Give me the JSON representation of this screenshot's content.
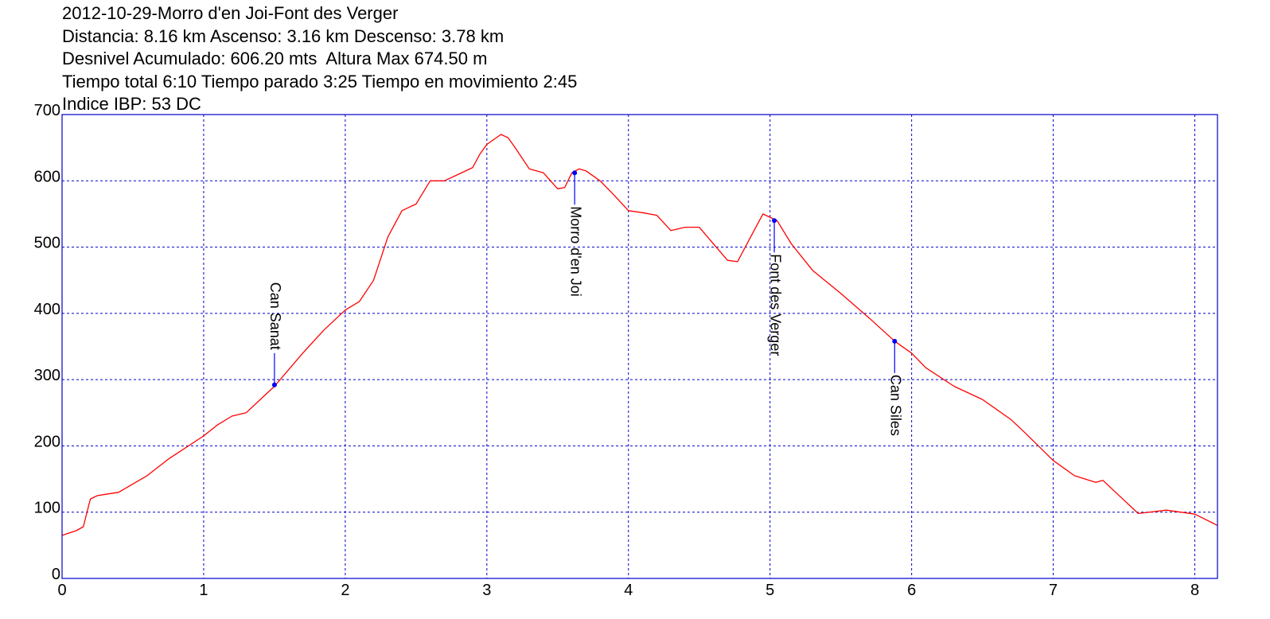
{
  "header": {
    "lines": [
      "2012-10-29-Morro d'en Joi-Font des Verger",
      "Distancia: 8.16 km Ascenso: 3.16 km Descenso: 3.78 km",
      "Desnivel Acumulado: 606.20 mts  Altura Max 674.50 m",
      "Tiempo total 6:10 Tiempo parado 3:25 Tiempo en movimiento 2:45",
      "Indice IBP: 53 DC"
    ]
  },
  "chart_data": {
    "type": "line",
    "title": "2012-10-29-Morro d'en Joi-Font des Verger",
    "xlabel": "",
    "ylabel": "",
    "xlim": [
      0,
      8.16
    ],
    "ylim": [
      0,
      700
    ],
    "x_ticks": [
      0,
      1,
      2,
      3,
      4,
      5,
      6,
      7,
      8
    ],
    "y_ticks": [
      0,
      100,
      200,
      300,
      400,
      500,
      600,
      700
    ],
    "grid": true,
    "colors": {
      "line": "#ff0000",
      "grid": "#0000cc",
      "frame": "#0000cc",
      "waypoint": "#0000ff"
    },
    "series": [
      {
        "x": [
          0,
          0.1,
          0.15,
          0.2,
          0.25,
          0.4,
          0.6,
          0.75,
          1.0,
          1.1,
          1.2,
          1.3,
          1.5,
          1.7,
          1.85,
          2.0,
          2.1,
          2.2,
          2.3,
          2.4,
          2.5,
          2.6,
          2.7,
          2.8,
          2.9,
          2.95,
          3.0,
          3.1,
          3.15,
          3.2,
          3.3,
          3.4,
          3.5,
          3.55,
          3.6,
          3.65,
          3.7,
          3.8,
          3.9,
          4.0,
          4.1,
          4.2,
          4.3,
          4.4,
          4.5,
          4.6,
          4.7,
          4.77,
          4.85,
          4.95,
          5.0,
          5.05,
          5.15,
          5.3,
          5.5,
          5.7,
          5.88,
          6.0,
          6.1,
          6.3,
          6.5,
          6.7,
          6.8,
          7.0,
          7.15,
          7.3,
          7.35,
          7.5,
          7.6,
          7.8,
          8.0,
          8.16
        ],
        "y": [
          65,
          72,
          78,
          120,
          125,
          130,
          155,
          180,
          215,
          232,
          245,
          250,
          290,
          340,
          375,
          405,
          418,
          450,
          515,
          555,
          565,
          600,
          600,
          610,
          620,
          640,
          655,
          670,
          665,
          650,
          618,
          612,
          588,
          590,
          612,
          618,
          615,
          600,
          578,
          555,
          552,
          548,
          525,
          530,
          530,
          505,
          480,
          478,
          510,
          550,
          545,
          540,
          505,
          465,
          430,
          393,
          358,
          340,
          318,
          290,
          270,
          240,
          220,
          178,
          155,
          145,
          148,
          118,
          98,
          103,
          97,
          80
        ]
      }
    ],
    "waypoints": [
      {
        "name": "Can Sanat",
        "x": 1.5,
        "y": 292,
        "direction": "up"
      },
      {
        "name": "Morro d'en Joi",
        "x": 3.62,
        "y": 612,
        "direction": "down"
      },
      {
        "name": "Font des Verger",
        "x": 5.03,
        "y": 540,
        "direction": "down"
      },
      {
        "name": "Can Siles",
        "x": 5.88,
        "y": 358,
        "direction": "down"
      }
    ]
  }
}
